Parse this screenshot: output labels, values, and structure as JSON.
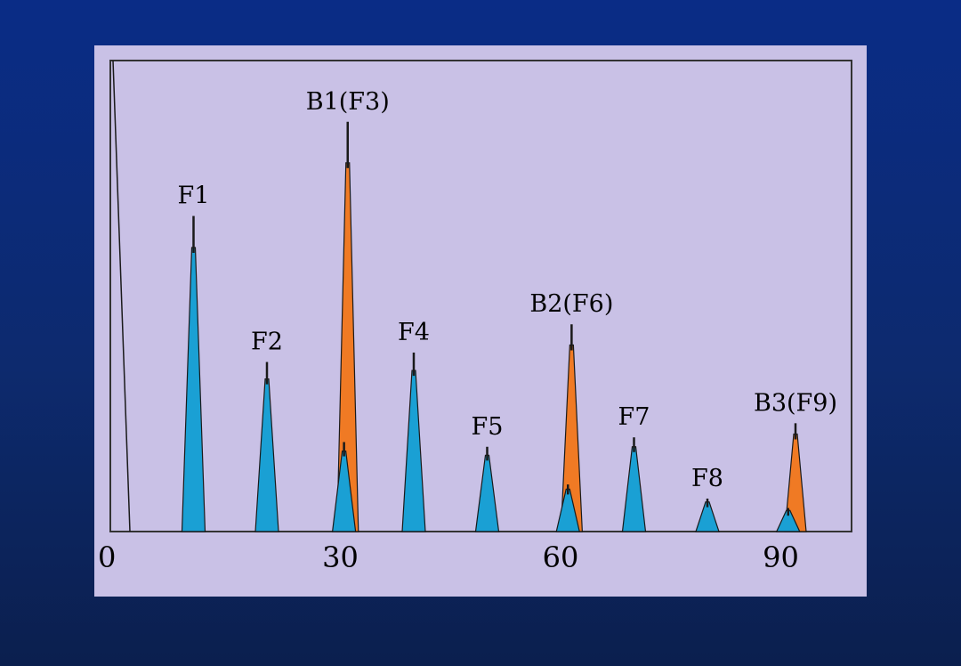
{
  "chart_data": {
    "type": "bar",
    "title": "",
    "xlabel": "",
    "ylabel": "",
    "xlim": [
      0,
      100
    ],
    "ylim": [
      0,
      1
    ],
    "x_ticks": [
      "0",
      "30",
      "60",
      "90"
    ],
    "x_tick_values": [
      0,
      30,
      60,
      90
    ],
    "grid": false,
    "colors": {
      "fundamental": "#1aa0d4",
      "beat": "#f07a24",
      "outline": "#1a1a1a",
      "axis": "#333333",
      "background": "#c9c1e6"
    },
    "series": [
      {
        "role": "fundamental",
        "peaks": [
          {
            "label": "F1",
            "x": 10,
            "value": 0.67
          },
          {
            "label": "F2",
            "x": 20,
            "value": 0.36
          },
          {
            "label": "",
            "x": 30.5,
            "value": 0.19
          },
          {
            "label": "F4",
            "x": 40,
            "value": 0.38
          },
          {
            "label": "F5",
            "x": 50,
            "value": 0.18
          },
          {
            "label": "",
            "x": 61,
            "value": 0.1
          },
          {
            "label": "F7",
            "x": 70,
            "value": 0.2
          },
          {
            "label": "F8",
            "x": 80,
            "value": 0.07
          },
          {
            "label": "",
            "x": 91,
            "value": 0.05
          }
        ]
      },
      {
        "role": "beat",
        "peaks": [
          {
            "label": "B1(F3)",
            "x": 31,
            "value": 0.87
          },
          {
            "label": "B2(F6)",
            "x": 61.5,
            "value": 0.44
          },
          {
            "label": "B3(F9)",
            "x": 92,
            "value": 0.23
          }
        ]
      }
    ]
  }
}
